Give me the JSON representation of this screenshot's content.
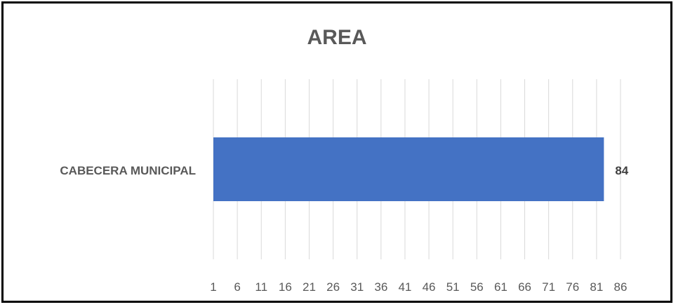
{
  "chart_data": {
    "type": "bar",
    "orientation": "horizontal",
    "title": "AREA",
    "categories": [
      "CABECERA MUNICIPAL"
    ],
    "values": [
      84
    ],
    "data_labels": [
      "84"
    ],
    "xlim": [
      1,
      86
    ],
    "x_ticks": [
      "1",
      "6",
      "11",
      "16",
      "21",
      "26",
      "31",
      "36",
      "41",
      "46",
      "51",
      "56",
      "61",
      "66",
      "71",
      "76",
      "81",
      "86"
    ],
    "grid": true,
    "legend": "none",
    "colors": {
      "bar": "#4472C4",
      "grid": "#D9D9D9",
      "text": "#595959",
      "frame": "#000000"
    }
  }
}
